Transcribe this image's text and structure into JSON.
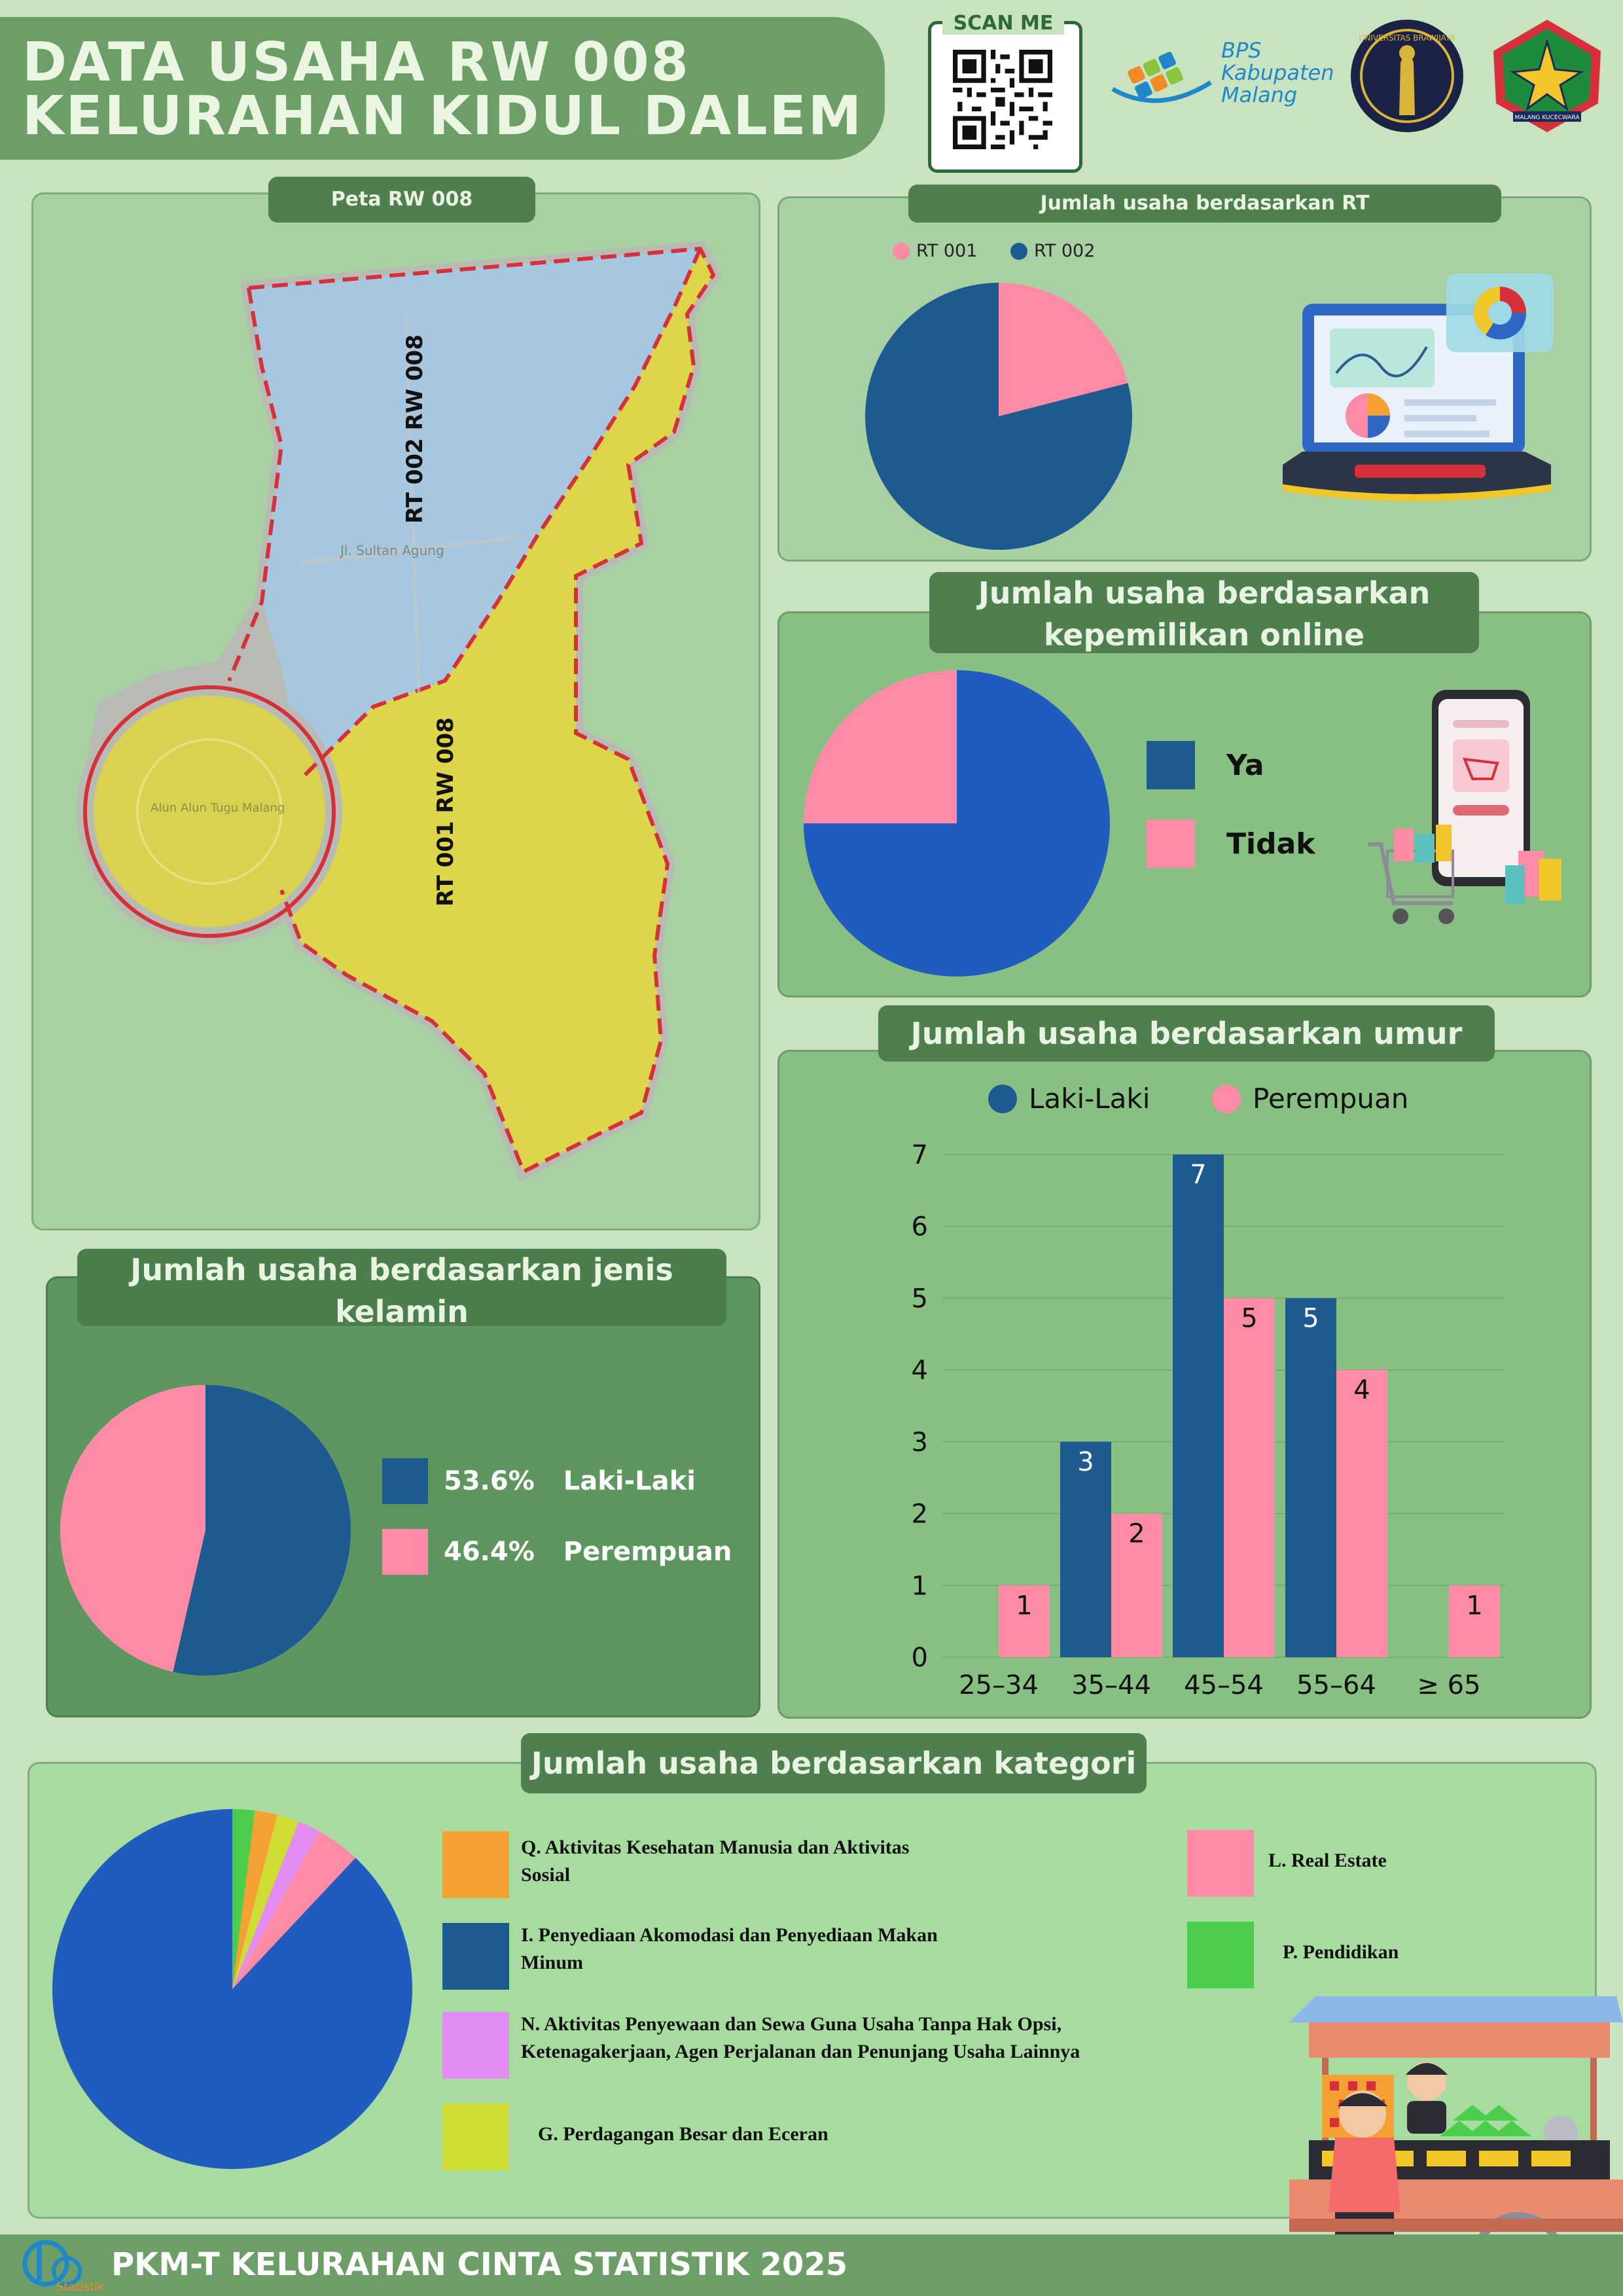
{
  "header": {
    "title_line1": "DATA USAHA RW 008",
    "title_line2": "KELURAHAN KIDUL DALEM",
    "scan_label": "SCAN ME",
    "bps_line1": "BPS",
    "bps_line2": "Kabupaten",
    "bps_line3": "Malang",
    "ub_seal_text": "UNIVERSITAS BRAWIJAYA",
    "malang_seal_text": "MALANG KUCECWARA"
  },
  "map": {
    "title": "Peta RW 008",
    "rt002_label": "RT 002 RW 008",
    "rt001_label": "RT 001 RW 008",
    "street_label": "Jl. Sultan Agung",
    "square_label": "Alun Alun Tugu Malang"
  },
  "colors": {
    "blue": "#1d5a8f",
    "blue_bright": "#1f5cbd",
    "pink": "#ff8ba6",
    "green_dark": "#4f7e4f",
    "orange": "#f5a033",
    "violet": "#e38cf2",
    "lime": "#cfdc33",
    "green": "#4ccd4c"
  },
  "rt_chart": {
    "title": "Jumlah usaha berdasarkan RT",
    "chart_data": {
      "type": "pie",
      "categories": [
        "RT 001",
        "RT 002"
      ],
      "values": [
        21,
        79
      ]
    }
  },
  "online_chart": {
    "title_line1": "Jumlah usaha berdasarkan",
    "title_line2": "kepemilikan online",
    "chart_data": {
      "type": "pie",
      "categories": [
        "Ya",
        "Tidak"
      ],
      "values": [
        75,
        25
      ]
    }
  },
  "gender_chart": {
    "title_line1": "Jumlah usaha berdasarkan jenis",
    "title_line2": "kelamin",
    "chart_data": {
      "type": "pie",
      "categories": [
        "Laki-Laki",
        "Perempuan"
      ],
      "values": [
        53.6,
        46.4
      ],
      "labels": [
        "53.6%",
        "46.4%"
      ]
    }
  },
  "age_chart": {
    "title": "Jumlah usaha berdasarkan umur",
    "chart_data": {
      "type": "bar",
      "categories": [
        "25–34",
        "35–44",
        "45–54",
        "55–64",
        "≥ 65"
      ],
      "series": [
        {
          "name": "Laki-Laki",
          "values": [
            0,
            3,
            7,
            5,
            0
          ]
        },
        {
          "name": "Perempuan",
          "values": [
            1,
            2,
            5,
            4,
            1
          ]
        }
      ],
      "ylim": [
        0,
        7
      ],
      "yticks": [
        "0",
        "1",
        "2",
        "3",
        "4",
        "5",
        "6",
        "7"
      ],
      "grid": true,
      "legend": "top"
    }
  },
  "category_chart": {
    "title": "Jumlah usaha berdasarkan kategori",
    "chart_data": {
      "type": "pie",
      "categories": [
        "I. Penyediaan Akomodasi dan Penyediaan Makan Minum",
        "L. Real Estate",
        "N. Aktivitas Penyewaan dan Sewa Guna Usaha Tanpa Hak Opsi, Ketenagakerjaan, Agen Perjalanan dan Penunjang Usaha Lainnya",
        "G. Perdagangan Besar dan Eceran",
        "Q. Aktivitas Kesehatan Manusia dan Aktivitas Sosial",
        "P. Pendidikan"
      ],
      "values": [
        88,
        4,
        2,
        2,
        2,
        2
      ]
    },
    "legend": {
      "q_line1": "Q. Aktivitas Kesehatan Manusia dan Aktivitas",
      "q_line2": "Sosial",
      "i_line1": "I. Penyediaan Akomodasi dan Penyediaan Makan",
      "i_line2": "Minum",
      "n_line1": "N. Aktivitas Penyewaan dan Sewa Guna Usaha Tanpa Hak Opsi,",
      "n_line2": "Ketenagakerjaan,  Agen Perjalanan dan Penunjang Usaha Lainnya",
      "g": "G. Perdagangan Besar dan Eceran",
      "l": "L. Real Estate",
      "p": "P. Pendidikan"
    }
  },
  "footer": {
    "text": "PKM-T KELURAHAN CINTA STATISTIK 2025",
    "logo_text": "Statistik"
  }
}
